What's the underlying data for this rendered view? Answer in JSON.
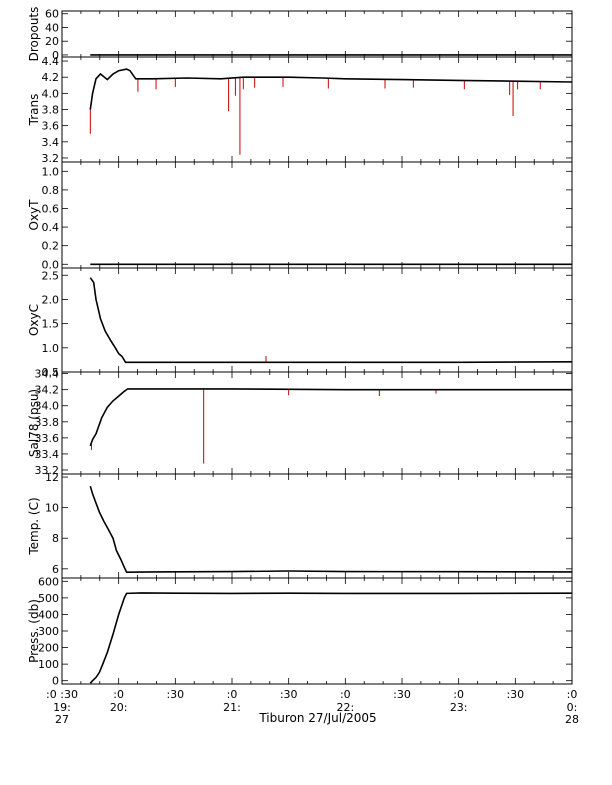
{
  "chart_data": {
    "type": "line",
    "xlabel": "Tiburon 27/Jul/2005",
    "x_unit": "hours (local time) on 27 Jul 2005; 24 = 28 Jul 00:00",
    "xlim": [
      19.5,
      24.0
    ],
    "x_ticks": [
      {
        "x": 19.5,
        "label": ":0 :30",
        "label2": "19:",
        "label3": "27"
      },
      {
        "x": 20.0,
        "label": ":0",
        "label2": "20:",
        "label3": ""
      },
      {
        "x": 20.5,
        "label": ":30",
        "label2": "",
        "label3": ""
      },
      {
        "x": 21.0,
        "label": ":0",
        "label2": "21:",
        "label3": ""
      },
      {
        "x": 21.5,
        "label": ":30",
        "label2": "",
        "label3": ""
      },
      {
        "x": 22.0,
        "label": ":0",
        "label2": "22:",
        "label3": ""
      },
      {
        "x": 22.5,
        "label": ":30",
        "label2": "",
        "label3": ""
      },
      {
        "x": 23.0,
        "label": ":0",
        "label2": "23:",
        "label3": ""
      },
      {
        "x": 23.5,
        "label": ":30",
        "label2": "",
        "label3": ""
      },
      {
        "x": 24.0,
        "label": ":0",
        "label2": "0:",
        "label3": "28"
      }
    ],
    "series_colors": {
      "averaged": "#000000",
      "raw": "#cc0000"
    },
    "panels": [
      {
        "id": "dropouts",
        "ylabel": "Dropouts",
        "ylim": [
          -3,
          64
        ],
        "ticks": [
          0,
          20,
          40,
          60
        ],
        "tick_labels": [
          "0",
          "20",
          "40",
          "60"
        ],
        "line": [
          [
            19.75,
            0
          ],
          [
            24.0,
            0
          ]
        ],
        "raw_spikes": []
      },
      {
        "id": "trans",
        "ylabel": "Trans",
        "ylim": [
          3.15,
          4.45
        ],
        "ticks": [
          3.2,
          3.4,
          3.6,
          3.8,
          4.0,
          4.2,
          4.4
        ],
        "tick_labels": [
          "3.2",
          "3.4",
          "3.6",
          "3.8",
          "4.0",
          "4.2",
          "4.4"
        ],
        "line": [
          [
            19.75,
            3.8
          ],
          [
            19.77,
            4.0
          ],
          [
            19.8,
            4.18
          ],
          [
            19.84,
            4.24
          ],
          [
            19.9,
            4.17
          ],
          [
            19.95,
            4.24
          ],
          [
            20.0,
            4.28
          ],
          [
            20.07,
            4.3
          ],
          [
            20.1,
            4.28
          ],
          [
            20.15,
            4.18
          ],
          [
            20.3,
            4.18
          ],
          [
            20.6,
            4.19
          ],
          [
            20.9,
            4.18
          ],
          [
            21.1,
            4.2
          ],
          [
            21.5,
            4.2
          ],
          [
            21.8,
            4.19
          ],
          [
            22.0,
            4.18
          ],
          [
            22.5,
            4.17
          ],
          [
            23.0,
            4.16
          ],
          [
            23.5,
            4.15
          ],
          [
            24.0,
            4.14
          ]
        ],
        "raw_spikes": [
          [
            19.75,
            3.5
          ],
          [
            20.17,
            4.02
          ],
          [
            20.33,
            4.05
          ],
          [
            20.5,
            4.08
          ],
          [
            20.97,
            3.78
          ],
          [
            21.03,
            3.97
          ],
          [
            21.07,
            3.24
          ],
          [
            21.1,
            4.05
          ],
          [
            21.2,
            4.07
          ],
          [
            21.45,
            4.08
          ],
          [
            21.85,
            4.06
          ],
          [
            22.35,
            4.06
          ],
          [
            22.6,
            4.07
          ],
          [
            23.05,
            4.05
          ],
          [
            23.45,
            3.98
          ],
          [
            23.48,
            3.72
          ],
          [
            23.52,
            4.05
          ],
          [
            23.72,
            4.05
          ]
        ]
      },
      {
        "id": "oxyt",
        "ylabel": "OxyT",
        "ylim": [
          -0.04,
          1.1
        ],
        "ticks": [
          0.0,
          0.2,
          0.4,
          0.6,
          0.8,
          1.0
        ],
        "tick_labels": [
          "0.0",
          "0.2",
          "0.4",
          "0.6",
          "0.8",
          "1.0"
        ],
        "line": [
          [
            19.75,
            0
          ],
          [
            24.0,
            0
          ]
        ],
        "raw_spikes": []
      },
      {
        "id": "oxyc",
        "ylabel": "OxyC",
        "ylim": [
          0.5,
          2.65
        ],
        "ticks": [
          0.5,
          1.0,
          1.5,
          2.0,
          2.5
        ],
        "tick_labels": [
          "0.5",
          "1.0",
          "1.5",
          "2.0",
          "2.5"
        ],
        "line": [
          [
            19.75,
            2.45
          ],
          [
            19.78,
            2.35
          ],
          [
            19.8,
            2.0
          ],
          [
            19.84,
            1.6
          ],
          [
            19.88,
            1.35
          ],
          [
            19.93,
            1.15
          ],
          [
            19.97,
            1.0
          ],
          [
            20.0,
            0.88
          ],
          [
            20.03,
            0.82
          ],
          [
            20.06,
            0.7
          ],
          [
            20.3,
            0.7
          ],
          [
            21.0,
            0.7
          ],
          [
            22.0,
            0.7
          ],
          [
            23.0,
            0.7
          ],
          [
            24.0,
            0.71
          ]
        ],
        "raw_spikes": [
          [
            21.3,
            0.83
          ]
        ]
      },
      {
        "id": "sal78",
        "ylabel": "Sal78 (psu)",
        "ylim": [
          33.15,
          34.42
        ],
        "ticks": [
          33.2,
          33.4,
          33.6,
          33.8,
          34.0,
          34.2,
          34.4
        ],
        "tick_labels": [
          "33.2",
          "33.4",
          "33.6",
          "33.8",
          "34.0",
          "34.2",
          "34.4"
        ],
        "line": [
          [
            19.75,
            33.5
          ],
          [
            19.77,
            33.58
          ],
          [
            19.8,
            33.65
          ],
          [
            19.85,
            33.85
          ],
          [
            19.9,
            33.98
          ],
          [
            19.95,
            34.06
          ],
          [
            20.0,
            34.12
          ],
          [
            20.05,
            34.18
          ],
          [
            20.08,
            34.21
          ],
          [
            20.5,
            34.21
          ],
          [
            21.0,
            34.21
          ],
          [
            22.0,
            34.2
          ],
          [
            23.0,
            34.2
          ],
          [
            24.0,
            34.2
          ]
        ],
        "raw_spikes": [
          [
            19.76,
            33.45
          ],
          [
            20.75,
            33.28
          ],
          [
            21.5,
            34.13
          ],
          [
            22.3,
            34.12
          ],
          [
            22.8,
            34.15
          ]
        ]
      },
      {
        "id": "temp",
        "ylabel": "Temp. (C)",
        "ylim": [
          5.4,
          12.2
        ],
        "ticks": [
          6,
          8,
          10,
          12
        ],
        "tick_labels": [
          "6",
          "8",
          "10",
          "12"
        ],
        "line": [
          [
            19.75,
            11.4
          ],
          [
            19.77,
            10.9
          ],
          [
            19.8,
            10.3
          ],
          [
            19.83,
            9.7
          ],
          [
            19.87,
            9.1
          ],
          [
            19.9,
            8.7
          ],
          [
            19.95,
            8.0
          ],
          [
            19.98,
            7.2
          ],
          [
            20.02,
            6.6
          ],
          [
            20.05,
            6.1
          ],
          [
            20.07,
            5.78
          ],
          [
            20.3,
            5.8
          ],
          [
            21.0,
            5.82
          ],
          [
            21.5,
            5.86
          ],
          [
            22.0,
            5.82
          ],
          [
            23.0,
            5.81
          ],
          [
            24.0,
            5.8
          ]
        ],
        "raw_spikes": []
      },
      {
        "id": "press",
        "ylabel": "Press. (db)",
        "ylim": [
          -20,
          620
        ],
        "ticks": [
          0,
          100,
          200,
          300,
          400,
          500,
          600
        ],
        "tick_labels": [
          "0",
          "100",
          "200",
          "300",
          "400",
          "500",
          "600"
        ],
        "line": [
          [
            19.75,
            -15
          ],
          [
            19.77,
            0
          ],
          [
            19.8,
            20
          ],
          [
            19.83,
            50
          ],
          [
            19.86,
            100
          ],
          [
            19.9,
            170
          ],
          [
            19.95,
            280
          ],
          [
            20.0,
            400
          ],
          [
            20.05,
            500
          ],
          [
            20.07,
            527
          ],
          [
            20.2,
            530
          ],
          [
            20.5,
            528
          ],
          [
            21.0,
            527
          ],
          [
            21.5,
            528
          ],
          [
            22.0,
            527
          ],
          [
            23.0,
            527
          ],
          [
            24.0,
            528
          ]
        ],
        "raw_spikes": []
      }
    ]
  }
}
